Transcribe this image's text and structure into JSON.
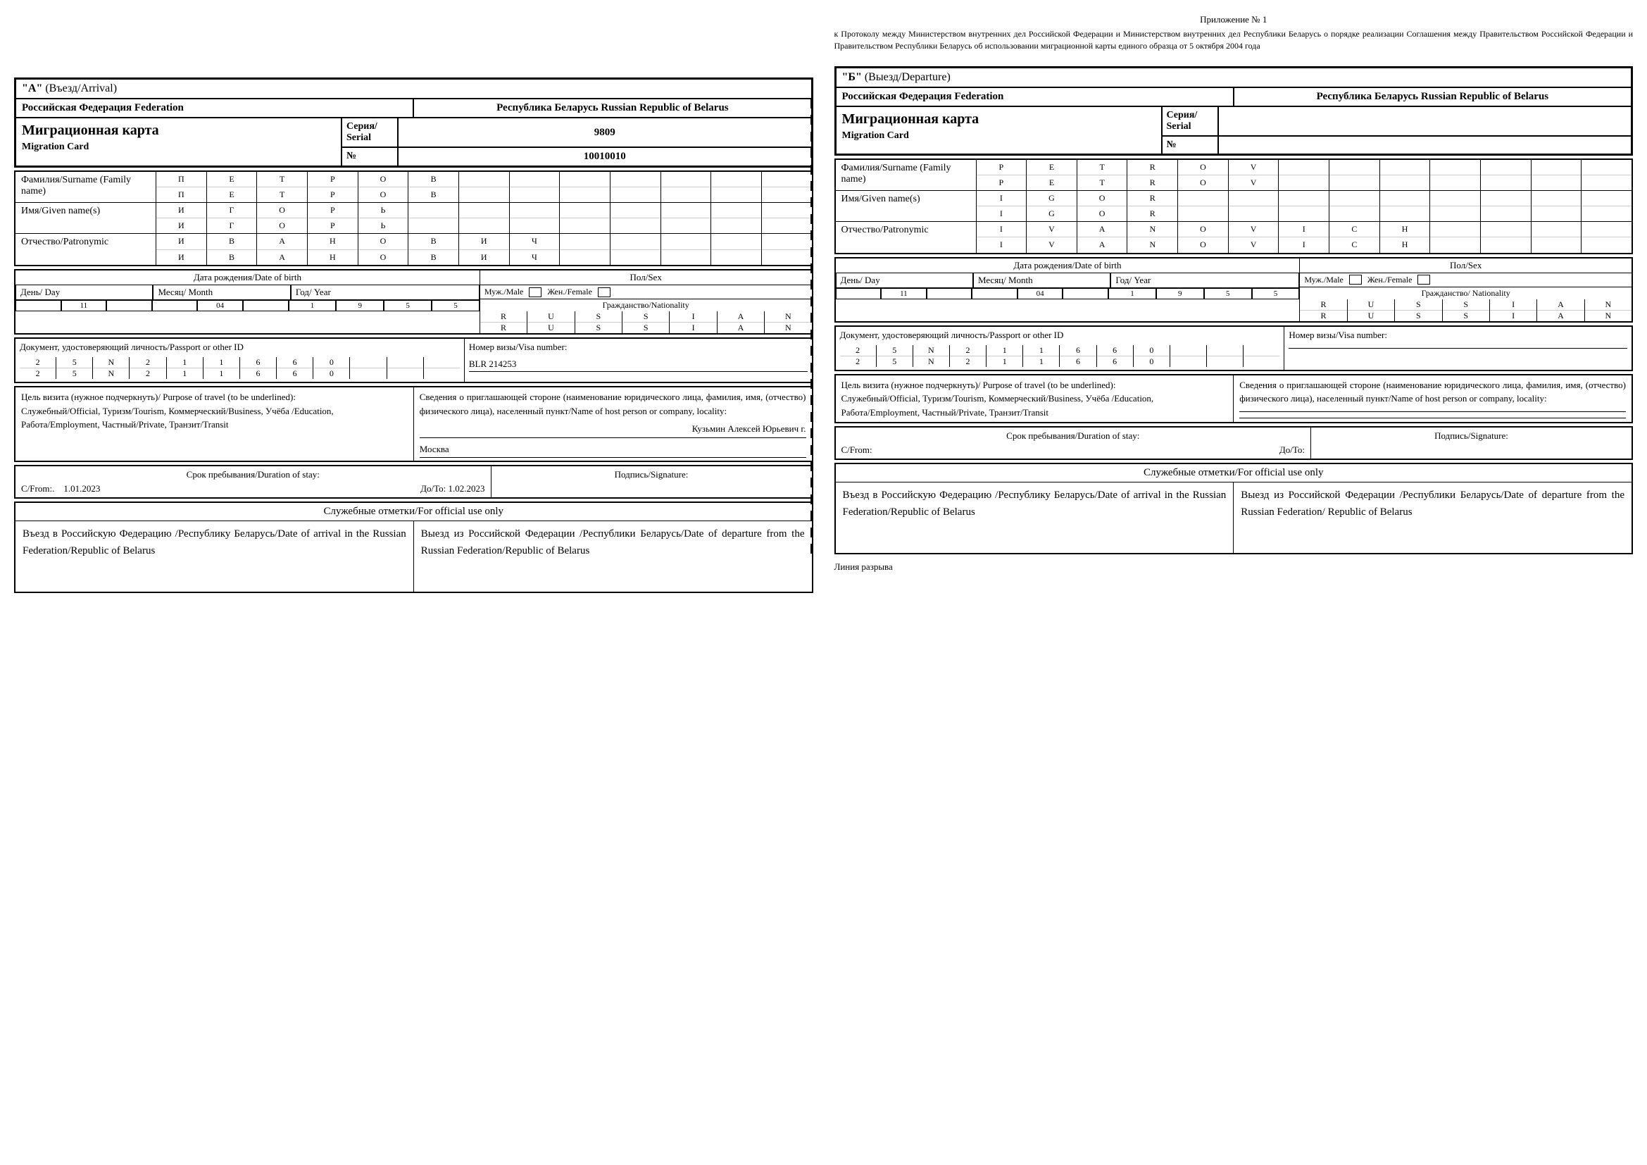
{
  "appendix": {
    "number": "Приложение № 1",
    "text": "к Протоколу между Министерством внутренних дел Российской Федерации и Министерством внутренних дел Республики Беларусь о порядке реализации Соглашения между Правительством Российской Федерации и Правительством Республики Беларусь об использовании миграционной карты единого образца от 5 октября 2004 года"
  },
  "cardA": {
    "type_label": "\"А\"",
    "type_sub": "(Въезд/Arrival)",
    "fed_left": "Российская Федерация Federation",
    "fed_right": "Республика Беларусь Russian Republic of Belarus",
    "mig_ru": "Миграционная карта",
    "mig_en": "Migration Card",
    "serial_label": "Серия/ Serial",
    "serial_val": "9809",
    "num_label": "№",
    "num_val": "10010010",
    "surname_label": "Фамилия/Surname    (Family name)",
    "surname_top": [
      "П",
      "Е",
      "Т",
      "Р",
      "О",
      "В",
      "",
      "",
      "",
      "",
      "",
      "",
      ""
    ],
    "surname_bot": [
      "П",
      "Е",
      "Т",
      "Р",
      "О",
      "В",
      "",
      "",
      "",
      "",
      "",
      "",
      ""
    ],
    "given_label": "Имя/Given name(s)",
    "given_top": [
      "И",
      "Г",
      "О",
      "Р",
      "Ь",
      "",
      "",
      "",
      "",
      "",
      "",
      "",
      ""
    ],
    "given_bot": [
      "И",
      "Г",
      "О",
      "Р",
      "Ь",
      "",
      "",
      "",
      "",
      "",
      "",
      "",
      ""
    ],
    "patr_label": "Отчество/Patronymic",
    "patr_top": [
      "И",
      "В",
      "А",
      "Н",
      "О",
      "В",
      "И",
      "Ч",
      "",
      "",
      "",
      "",
      ""
    ],
    "patr_bot": [
      "И",
      "В",
      "А",
      "Н",
      "О",
      "В",
      "И",
      "Ч",
      "",
      "",
      "",
      "",
      ""
    ],
    "dob_title": "Дата рождения/Date of birth",
    "day_label": "День/ Day",
    "month_label": "Месяц/ Month",
    "year_label": "Год/ Year",
    "day": "11",
    "month": "04",
    "year": [
      "1",
      "9",
      "5",
      "5"
    ],
    "sex_title": "Пол/Sex",
    "male": "Муж./Male",
    "female": "Жен./Female",
    "nat_label": "Гражданство/Nationality",
    "nat_top": [
      "R",
      "U",
      "S",
      "S",
      "I",
      "A",
      "N"
    ],
    "nat_bot": [
      "R",
      "U",
      "S",
      "S",
      "I",
      "A",
      "N"
    ],
    "doc_label": "Документ, удостоверяющий личность/Passport  or other ID",
    "doc_top": [
      "2",
      "5",
      "N",
      "2",
      "1",
      "1",
      "6",
      "6",
      "0",
      "",
      "",
      ""
    ],
    "doc_bot": [
      "2",
      "5",
      "N",
      "2",
      "1",
      "1",
      "6",
      "6",
      "0",
      "",
      "",
      ""
    ],
    "visa_label": "Номер визы/Visa number:",
    "visa_val": "BLR 214253",
    "purpose_title": "Цель визита (нужное подчеркнуть)/ Purpose of travel (to be underlined):",
    "purpose_opts": "Служебный/Official, Туризм/Tourism, Коммерческий/Business, Учёба /Education, Работа/Employment, Частный/Private, Транзит/Transit",
    "host_title": "Сведения о приглашающей стороне (наименование юридического лица, фамилия, имя, (отчество) физического лица), населенный пункт/Name of host person or company, locality:",
    "host_name": "Кузьмин    Алексей    Юрьевич    г.",
    "host_city": "Москва",
    "dur_title": "Срок пребывания/Duration of stay:",
    "from_label": "С/From:.",
    "from_val": "1.01.2023",
    "to_label": "До/To:",
    "to_val": "1.02.2023",
    "sig_label": "Подпись/Signature:",
    "official_title": "Служебные отметки/For official use only",
    "official_in": "Въезд в Российскую Федерацию /Республику Беларусь/Date of arrival in the Russian Federation/Republic of Belarus",
    "official_out": "Выезд из Российской Федерации /Республики Беларусь/Date of departure from the Russian Federation/Republic of Belarus"
  },
  "cardB": {
    "type_label": "\"Б\"",
    "type_sub": "(Выезд/Departure)",
    "fed_left": "Российская Федерация Federation",
    "fed_right": "Республика Беларусь Russian Republic of Belarus",
    "mig_ru": "Миграционная карта",
    "mig_en": "Migration Card",
    "serial_label": "Серия/ Serial",
    "serial_val": "",
    "num_label": "№",
    "num_val": "",
    "surname_label": "Фамилия/Surname  (Family name)",
    "surname_top": [
      "P",
      "E",
      "T",
      "R",
      "O",
      "V",
      "",
      "",
      "",
      "",
      "",
      "",
      ""
    ],
    "surname_bot": [
      "P",
      "E",
      "T",
      "R",
      "O",
      "V",
      "",
      "",
      "",
      "",
      "",
      "",
      ""
    ],
    "given_label": "Имя/Given name(s)",
    "given_top": [
      "I",
      "G",
      "O",
      "R",
      "",
      "",
      "",
      "",
      "",
      "",
      "",
      "",
      ""
    ],
    "given_bot": [
      "I",
      "G",
      "O",
      "R",
      "",
      "",
      "",
      "",
      "",
      "",
      "",
      "",
      ""
    ],
    "patr_label": "Отчество/Patronymic",
    "patr_top": [
      "I",
      "V",
      "A",
      "N",
      "O",
      "V",
      "I",
      "C",
      "H",
      "",
      "",
      "",
      ""
    ],
    "patr_bot": [
      "I",
      "V",
      "A",
      "N",
      "O",
      "V",
      "I",
      "C",
      "H",
      "",
      "",
      "",
      ""
    ],
    "dob_title": "Дата рождения/Date of birth",
    "day_label": "День/ Day",
    "month_label": "Месяц/ Month",
    "year_label": "Год/ Year",
    "day": "11",
    "month": "04",
    "year": [
      "1",
      "9",
      "5",
      "5"
    ],
    "sex_title": "Пол/Sex",
    "male": "Муж./Male",
    "female": "Жен./Female",
    "nat_label": "Гражданство/ Nationality",
    "nat_top": [
      "R",
      "U",
      "S",
      "S",
      "I",
      "A",
      "N"
    ],
    "nat_bot": [
      "R",
      "U",
      "S",
      "S",
      "I",
      "A",
      "N"
    ],
    "doc_label": "Документ, удостоверяющий личность/Passport or other ID",
    "doc_top": [
      "2",
      "5",
      "N",
      "2",
      "1",
      "1",
      "6",
      "6",
      "0",
      "",
      "",
      ""
    ],
    "doc_bot": [
      "2",
      "5",
      "N",
      "2",
      "1",
      "1",
      "6",
      "6",
      "0",
      "",
      "",
      ""
    ],
    "visa_label": "Номер визы/Visa number:",
    "visa_val": "",
    "purpose_title": "Цель визита (нужное подчеркнуть)/ Purpose of travel (to be underlined):",
    "purpose_opts": "Служебный/Official, Туризм/Tourism, Коммерческий/Business, Учёба /Education, Работа/Employment, Частный/Private, Транзит/Transit",
    "host_title": "Сведения о приглашающей стороне (наименование юридического лица, фамилия, имя, (отчество) физического лица), населенный пункт/Name of host person or company, locality:",
    "host_name": "",
    "host_city": "",
    "dur_title": "Срок пребывания/Duration of stay:",
    "from_label": "С/From:",
    "from_val": "",
    "to_label": "До/To:",
    "to_val": "",
    "sig_label": "Подпись/Signature:",
    "official_title": "Служебные отметки/For official use only",
    "official_in": "Въезд в Российскую Федерацию /Республику Беларусь/Date of arrival in the Russian Federation/Republic of Belarus",
    "official_out": "Выезд из Российской Федерации /Республики Беларусь/Date of departure from the Russian Federation/ Republic of Belarus"
  },
  "tear": "Линия разрыва"
}
